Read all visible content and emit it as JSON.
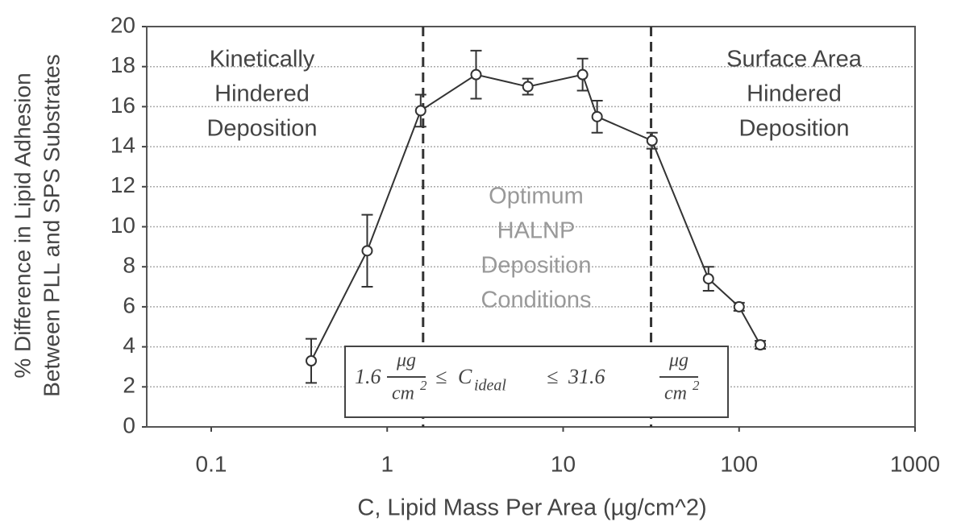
{
  "chart_data": {
    "type": "line",
    "ylabel": [
      "% Difference in Lipid Adhesion",
      "Between PLL and SPS Substrates"
    ],
    "xlabel": "C, Lipid Mass Per Area (µg/cm^2)",
    "xscale": "log",
    "grid": true,
    "xlim": [
      0.043,
      1000
    ],
    "xticks": [
      0.1,
      1,
      10,
      100,
      1000
    ],
    "ylim": [
      0,
      20
    ],
    "yticks": [
      0,
      2,
      4,
      6,
      8,
      10,
      12,
      14,
      16,
      18,
      20
    ],
    "x": [
      0.37,
      0.77,
      1.55,
      3.2,
      6.3,
      12.9,
      15.6,
      32,
      67,
      100,
      132
    ],
    "series": [
      {
        "color": "#333333",
        "values": [
          3.3,
          8.8,
          15.8,
          17.6,
          17.0,
          17.6,
          15.5,
          14.3,
          7.4,
          6.0,
          4.1
        ],
        "errors": [
          1.1,
          1.8,
          0.8,
          1.2,
          0.4,
          0.8,
          0.8,
          0.4,
          0.6,
          0.2,
          0.2
        ]
      }
    ],
    "vlines": [
      1.6,
      31.6
    ],
    "annotations": [
      {
        "lines": [
          "Kinetically",
          "Hindered",
          "Deposition"
        ]
      },
      {
        "lines": [
          "Surface Area",
          "Hindered",
          "Deposition"
        ]
      },
      {
        "lines": [
          "Optimum",
          "HALNP",
          "Deposition",
          "Conditions"
        ]
      }
    ],
    "formula": {
      "low": "1.6",
      "num": "μg",
      "den": "cm",
      "exp": "2",
      "le": "≤",
      "var": "C",
      "sub": "ideal",
      "high": "31.6"
    }
  }
}
